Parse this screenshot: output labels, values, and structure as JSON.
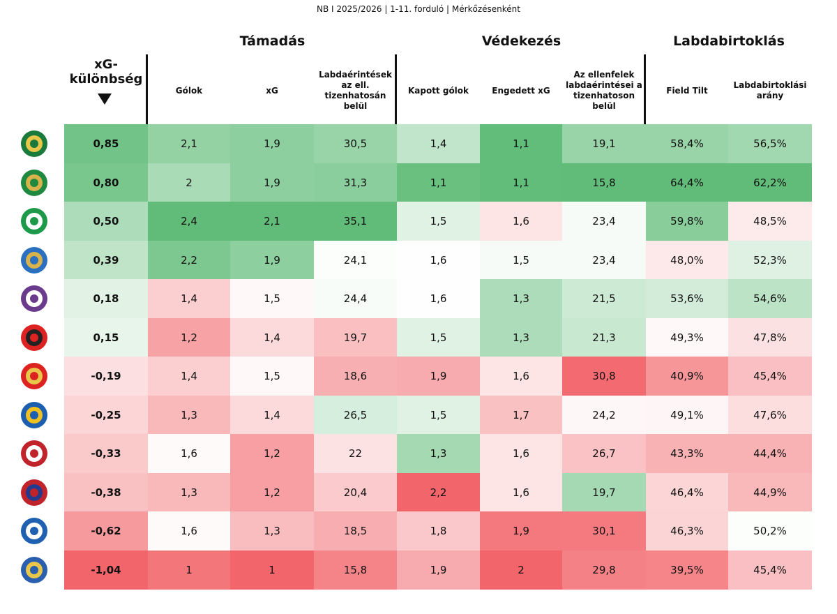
{
  "header": {
    "subtitle": "NB I 2025/2026 | 1-11. forduló | Mérkőzésenként"
  },
  "groups": [
    "Támadás",
    "Védekezés",
    "Labdabirtoklás"
  ],
  "columns": [
    [
      "xG-",
      "különbség"
    ],
    [
      "Gólok"
    ],
    [
      "xG"
    ],
    [
      "Labdaérintések",
      "az ell.",
      "tizenhatosán",
      "belül"
    ],
    [
      "Kapott gólok"
    ],
    [
      "Engedett xG"
    ],
    [
      "Az ellenfelek",
      "labdaérintései a",
      "tizenhatoson",
      "belül"
    ],
    [
      "Field Tilt"
    ],
    [
      "Labdabirtoklási",
      "arány"
    ]
  ],
  "rows": [
    [
      "0,85",
      "2,1",
      "1,9",
      "30,5",
      "1,4",
      "1,1",
      "19,1",
      "58,4%",
      "56,5%"
    ],
    [
      "0,80",
      "2",
      "1,9",
      "31,3",
      "1,1",
      "1,1",
      "15,8",
      "64,4%",
      "62,2%"
    ],
    [
      "0,50",
      "2,4",
      "2,1",
      "35,1",
      "1,5",
      "1,6",
      "23,4",
      "59,8%",
      "48,5%"
    ],
    [
      "0,39",
      "2,2",
      "1,9",
      "24,1",
      "1,6",
      "1,5",
      "23,4",
      "48,0%",
      "52,3%"
    ],
    [
      "0,18",
      "1,4",
      "1,5",
      "24,4",
      "1,6",
      "1,3",
      "21,5",
      "53,6%",
      "54,6%"
    ],
    [
      "0,15",
      "1,2",
      "1,4",
      "19,7",
      "1,5",
      "1,3",
      "21,3",
      "49,3%",
      "47,8%"
    ],
    [
      "-0,19",
      "1,4",
      "1,5",
      "18,6",
      "1,9",
      "1,6",
      "30,8",
      "40,9%",
      "45,4%"
    ],
    [
      "-0,25",
      "1,3",
      "1,4",
      "26,5",
      "1,5",
      "1,7",
      "24,2",
      "49,1%",
      "47,6%"
    ],
    [
      "-0,33",
      "1,6",
      "1,2",
      "22",
      "1,3",
      "1,6",
      "26,7",
      "43,3%",
      "44,4%"
    ],
    [
      "-0,38",
      "1,3",
      "1,2",
      "20,4",
      "2,2",
      "1,6",
      "19,7",
      "46,4%",
      "44,9%"
    ],
    [
      "-0,62",
      "1,6",
      "1,3",
      "18,5",
      "1,8",
      "1,9",
      "30,1",
      "46,3%",
      "50,2%"
    ],
    [
      "-1,04",
      "1",
      "1",
      "15,8",
      "1,9",
      "2",
      "29,8",
      "39,5%",
      "45,4%"
    ]
  ]
}
